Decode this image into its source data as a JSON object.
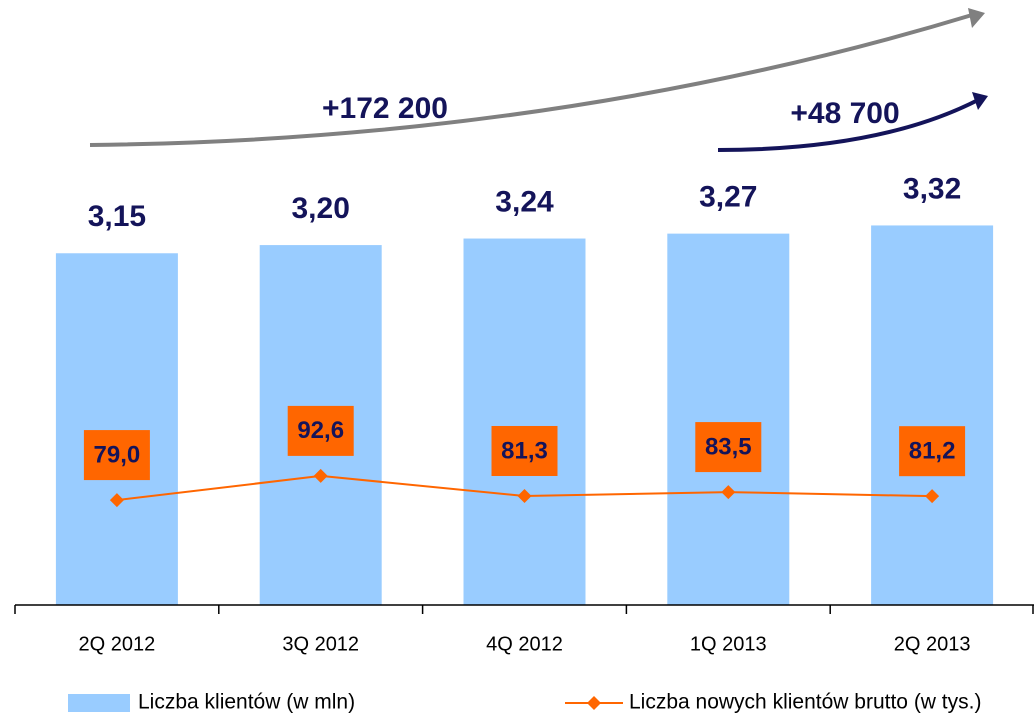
{
  "chart_data": {
    "type": "bar_line",
    "annotations": [
      "+172 200",
      "+48 700"
    ],
    "categories": [
      "2Q 2012",
      "3Q 2012",
      "4Q 2012",
      "1Q 2013",
      "2Q 2013"
    ],
    "series": [
      {
        "name": "Liczba klientów (w mln)",
        "type": "bar",
        "color": "#99ccff",
        "values": [
          3.15,
          3.2,
          3.24,
          3.27,
          3.32
        ],
        "value_labels": [
          "3,15",
          "3,20",
          "3,24",
          "3,27",
          "3,32"
        ]
      },
      {
        "name": "Liczba nowych klientów brutto (w tys.)",
        "type": "line",
        "color": "#ff6600",
        "axis": "y2",
        "values": [
          79.0,
          92.6,
          81.3,
          83.5,
          81.2
        ],
        "value_labels": [
          "79,0",
          "92,6",
          "81,3",
          "83,5",
          "81,2"
        ]
      }
    ],
    "ylim": [
      1,
      3.5
    ],
    "y2lim": [
      20,
      250
    ]
  }
}
